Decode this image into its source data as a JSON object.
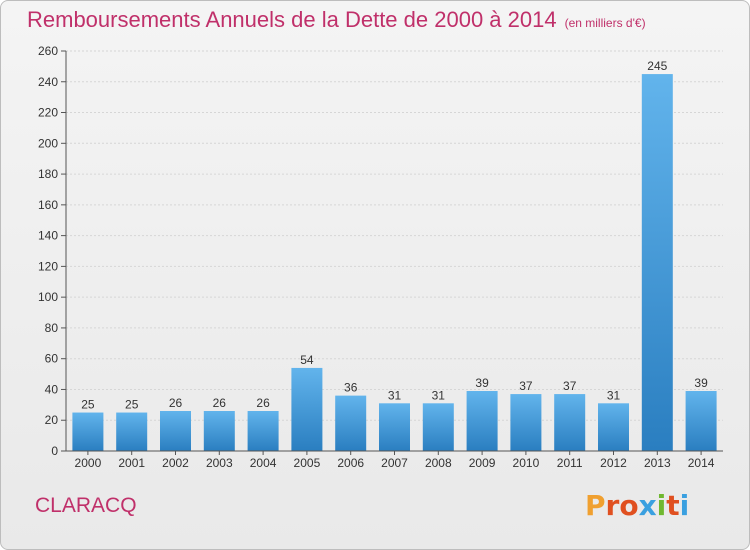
{
  "header": {
    "title": "Remboursements Annuels de la Dette de 2000 à 2014",
    "unit": "(en milliers d'€)"
  },
  "footer": {
    "commune": "CLARACQ",
    "logo": "Proxiti"
  },
  "colors": {
    "title": "#c0306a",
    "bar_light": "#62b4ec",
    "bar_dark": "#2a7ec0",
    "logo_letters": [
      "#f0a030",
      "#e05020",
      "#e05020",
      "#3aa0e0",
      "#70b830",
      "#e05020",
      "#3aa0e0"
    ]
  },
  "chart_data": {
    "type": "bar",
    "title": "Remboursements Annuels de la Dette de 2000 à 2014",
    "xlabel": "",
    "ylabel": "",
    "categories": [
      "2000",
      "2001",
      "2002",
      "2003",
      "2004",
      "2005",
      "2006",
      "2007",
      "2008",
      "2009",
      "2010",
      "2011",
      "2012",
      "2013",
      "2014"
    ],
    "values": [
      25,
      25,
      26,
      26,
      26,
      54,
      36,
      31,
      31,
      39,
      37,
      37,
      31,
      245,
      39
    ],
    "ylim": [
      0,
      260
    ],
    "yticks": [
      0,
      20,
      40,
      60,
      80,
      100,
      120,
      140,
      160,
      180,
      200,
      220,
      240,
      260
    ],
    "grid": true
  }
}
